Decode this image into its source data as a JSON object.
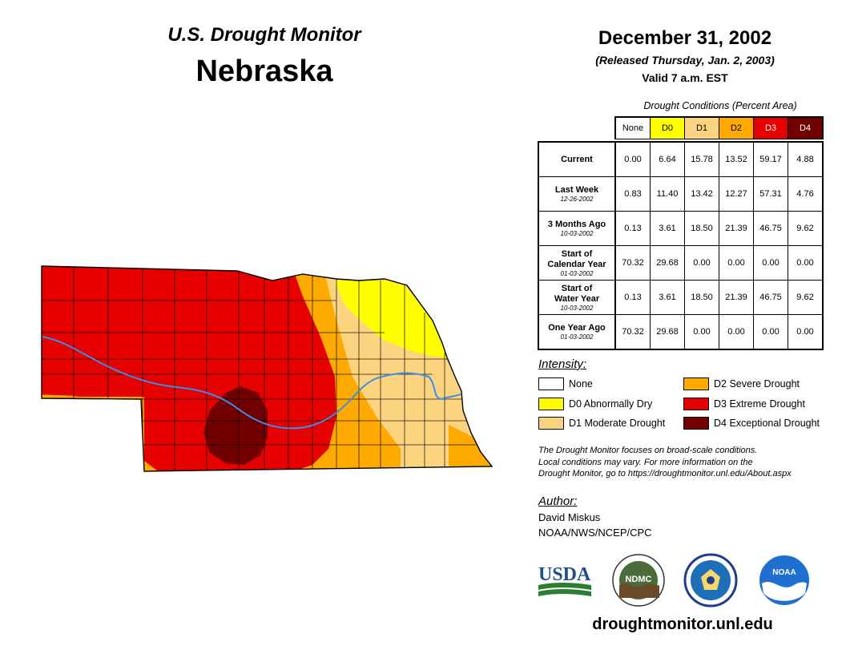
{
  "header": {
    "subtitle": "U.S. Drought Monitor",
    "state": "Nebraska",
    "date": "December 31, 2002",
    "released": "(Released Thursday, Jan. 2, 2003)",
    "valid": "Valid 7 a.m. EST"
  },
  "table": {
    "caption": "Drought Conditions (Percent Area)",
    "columns": [
      {
        "label": "None",
        "color": "#ffffff",
        "text_color": "#000000"
      },
      {
        "label": "D0",
        "color": "#ffff00",
        "text_color": "#000000"
      },
      {
        "label": "D1",
        "color": "#fcd37f",
        "text_color": "#000000"
      },
      {
        "label": "D2",
        "color": "#ffaa00",
        "text_color": "#000000"
      },
      {
        "label": "D3",
        "color": "#e60000",
        "text_color": "#ffffff"
      },
      {
        "label": "D4",
        "color": "#730000",
        "text_color": "#ffffff"
      }
    ],
    "rows": [
      {
        "label": "Current",
        "label2": "",
        "date": "",
        "values": [
          "0.00",
          "6.64",
          "15.78",
          "13.52",
          "59.17",
          "4.88"
        ]
      },
      {
        "label": "Last Week",
        "label2": "",
        "date": "12-26-2002",
        "values": [
          "0.83",
          "11.40",
          "13.42",
          "12.27",
          "57.31",
          "4.76"
        ]
      },
      {
        "label": "3 Months Ago",
        "label2": "",
        "date": "10-03-2002",
        "values": [
          "0.13",
          "3.61",
          "18.50",
          "21.39",
          "46.75",
          "9.62"
        ]
      },
      {
        "label": "Start of",
        "label2": "Calendar Year",
        "date": "01-03-2002",
        "values": [
          "70.32",
          "29.68",
          "0.00",
          "0.00",
          "0.00",
          "0.00"
        ]
      },
      {
        "label": "Start of",
        "label2": "Water Year",
        "date": "10-03-2002",
        "values": [
          "0.13",
          "3.61",
          "18.50",
          "21.39",
          "46.75",
          "9.62"
        ]
      },
      {
        "label": "One Year Ago",
        "label2": "",
        "date": "01-03-2002",
        "values": [
          "70.32",
          "29.68",
          "0.00",
          "0.00",
          "0.00",
          "0.00"
        ]
      }
    ]
  },
  "legend": {
    "title": "Intensity:",
    "items": [
      {
        "label": "None",
        "color": "#ffffff"
      },
      {
        "label": "D0 Abnormally Dry",
        "color": "#ffff00"
      },
      {
        "label": "D1 Moderate Drought",
        "color": "#fcd37f"
      },
      {
        "label": "D2 Severe Drought",
        "color": "#ffaa00"
      },
      {
        "label": "D3 Extreme Drought",
        "color": "#e60000"
      },
      {
        "label": "D4 Exceptional Drought",
        "color": "#730000"
      }
    ]
  },
  "note": {
    "line1": "The Drought Monitor focuses on broad-scale conditions.",
    "line2": "Local conditions may vary. For more information on the",
    "line3": "Drought Monitor, go to https://droughtmonitor.unl.edu/About.aspx"
  },
  "author": {
    "title": "Author:",
    "name": "David Miskus",
    "org": "NOAA/NWS/NCEP/CPC"
  },
  "logos": {
    "usda": "USDA",
    "ndmc": "NDMC",
    "noaa": "NOAA"
  },
  "website": "droughtmonitor.unl.edu",
  "colors": {
    "river": "#3a8ee6",
    "county_lines": "#000000"
  }
}
